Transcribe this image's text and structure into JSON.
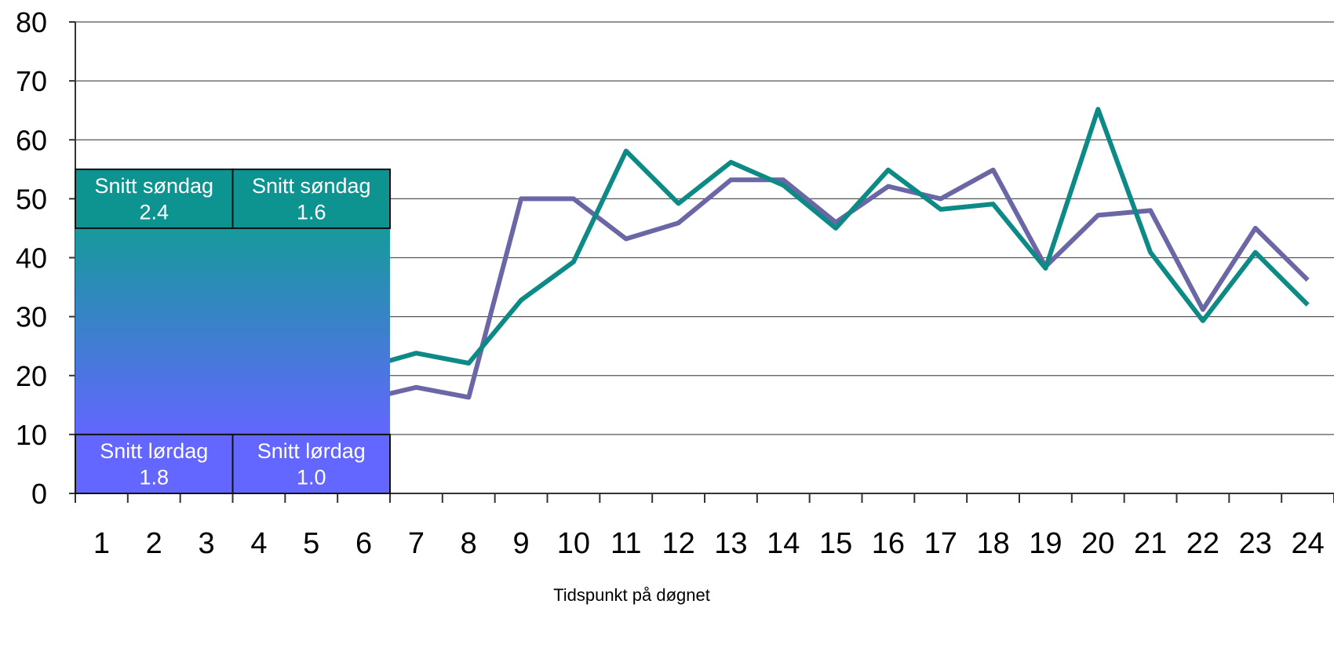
{
  "chart_data": {
    "type": "line",
    "title": "",
    "xlabel": "Tidspunkt på døgnet",
    "ylabel": "",
    "ylim": [
      0,
      80
    ],
    "yticks": [
      0,
      10,
      20,
      30,
      40,
      50,
      60,
      70,
      80
    ],
    "categories": [
      "1",
      "2",
      "3",
      "4",
      "5",
      "6",
      "7",
      "8",
      "9",
      "10",
      "11",
      "12",
      "13",
      "14",
      "15",
      "16",
      "17",
      "18",
      "19",
      "20",
      "21",
      "22",
      "23",
      "24"
    ],
    "grid": true,
    "legend": "none",
    "series": [
      {
        "color": "#6B67A6",
        "values": [
          null,
          null,
          null,
          null,
          null,
          15.9,
          18.0,
          16.3,
          50.0,
          50.0,
          43.2,
          45.9,
          53.2,
          53.2,
          46.0,
          52.1,
          50.0,
          54.9,
          38.5,
          47.2,
          48.0,
          31.2,
          45.0,
          36.2
        ]
      },
      {
        "color": "#0E8A86",
        "values": [
          null,
          null,
          null,
          null,
          null,
          21.3,
          23.8,
          22.1,
          32.8,
          39.3,
          58.1,
          49.2,
          56.2,
          52.3,
          45.0,
          54.9,
          48.2,
          49.1,
          38.2,
          65.2,
          40.9,
          29.3,
          40.9,
          32.0
        ]
      }
    ],
    "overlay": {
      "boxes": [
        {
          "label": "Snitt søndag",
          "value": "2.4",
          "hours": [
            1,
            3
          ],
          "range": [
            45,
            55
          ],
          "color": "#0E9490"
        },
        {
          "label": "Snitt søndag",
          "value": "1.6",
          "hours": [
            4,
            6
          ],
          "range": [
            45,
            55
          ],
          "color": "#0E9490"
        },
        {
          "label": "Snitt lørdag",
          "value": "1.8",
          "hours": [
            1,
            3
          ],
          "range": [
            0,
            10
          ],
          "color": "#6366FF"
        },
        {
          "label": "Snitt lørdag",
          "value": "1.0",
          "hours": [
            4,
            6
          ],
          "range": [
            0,
            10
          ],
          "color": "#6366FF"
        }
      ],
      "gradient": {
        "range": [
          10,
          45
        ],
        "top_color": "#169A9B",
        "bottom_color": "#6366FF"
      }
    }
  }
}
